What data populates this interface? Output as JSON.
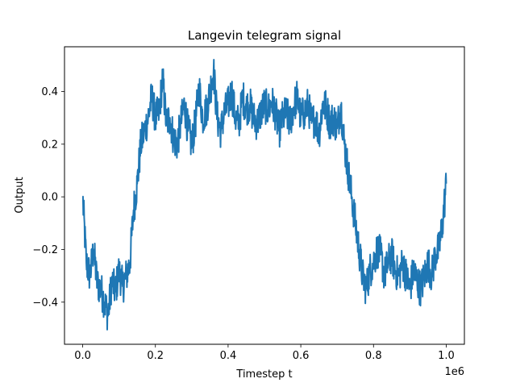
{
  "chart_data": {
    "type": "line",
    "title": "Langevin telegram signal",
    "xlabel": "Timestep t",
    "ylabel": "Output",
    "x_offset_label": "1e6",
    "xlim": [
      -50000,
      1050000
    ],
    "ylim": [
      -0.56,
      0.57
    ],
    "x_ticks": [
      0,
      200000,
      400000,
      600000,
      800000,
      1000000
    ],
    "x_tick_labels": [
      "0.0",
      "0.2",
      "0.4",
      "0.6",
      "0.8",
      "1.0"
    ],
    "y_ticks": [
      -0.4,
      -0.2,
      0.0,
      0.2,
      0.4
    ],
    "y_tick_labels": [
      "−0.4",
      "−0.2",
      "0.0",
      "0.2",
      "0.4"
    ],
    "grid": false,
    "series_color": "#1f77b4",
    "series": [
      {
        "x": [
          0,
          10000,
          20000,
          30000,
          40000,
          50000,
          60000,
          70000,
          80000,
          90000,
          100000,
          110000,
          120000,
          130000,
          140000,
          150000,
          160000,
          170000,
          180000,
          190000,
          200000,
          210000,
          220000,
          230000,
          240000,
          250000,
          260000,
          270000,
          280000,
          290000,
          300000,
          310000,
          320000,
          330000,
          340000,
          350000,
          360000,
          370000,
          380000,
          390000,
          400000,
          410000,
          420000,
          430000,
          440000,
          450000,
          460000,
          470000,
          480000,
          490000,
          500000,
          510000,
          520000,
          530000,
          540000,
          550000,
          560000,
          570000,
          580000,
          590000,
          600000,
          610000,
          620000,
          630000,
          640000,
          650000,
          660000,
          670000,
          680000,
          690000,
          700000,
          710000,
          720000,
          730000,
          740000,
          750000,
          760000,
          770000,
          780000,
          790000,
          800000,
          810000,
          820000,
          830000,
          840000,
          850000,
          860000,
          870000,
          880000,
          890000,
          900000,
          910000,
          920000,
          930000,
          940000,
          950000,
          960000,
          970000,
          980000,
          990000,
          1000000
        ],
        "values": [
          0.0,
          -0.25,
          -0.3,
          -0.2,
          -0.33,
          -0.35,
          -0.4,
          -0.45,
          -0.32,
          -0.36,
          -0.28,
          -0.34,
          -0.3,
          -0.25,
          -0.05,
          0.05,
          0.2,
          0.25,
          0.3,
          0.38,
          0.3,
          0.32,
          0.45,
          0.28,
          0.3,
          0.22,
          0.2,
          0.28,
          0.35,
          0.25,
          0.2,
          0.28,
          0.42,
          0.3,
          0.33,
          0.4,
          0.48,
          0.3,
          0.25,
          0.32,
          0.35,
          0.4,
          0.3,
          0.28,
          0.38,
          0.34,
          0.35,
          0.3,
          0.28,
          0.32,
          0.35,
          0.33,
          0.36,
          0.32,
          0.25,
          0.3,
          0.32,
          0.28,
          0.34,
          0.38,
          0.3,
          0.32,
          0.35,
          0.28,
          0.3,
          0.24,
          0.35,
          0.34,
          0.28,
          0.3,
          0.26,
          0.35,
          0.2,
          0.1,
          0.0,
          -0.1,
          -0.2,
          -0.3,
          -0.35,
          -0.28,
          -0.25,
          -0.2,
          -0.22,
          -0.3,
          -0.25,
          -0.22,
          -0.28,
          -0.3,
          -0.25,
          -0.3,
          -0.35,
          -0.28,
          -0.32,
          -0.35,
          -0.3,
          -0.25,
          -0.3,
          -0.22,
          -0.2,
          -0.1,
          0.05
        ],
        "noise_amplitude": 0.07
      }
    ]
  }
}
